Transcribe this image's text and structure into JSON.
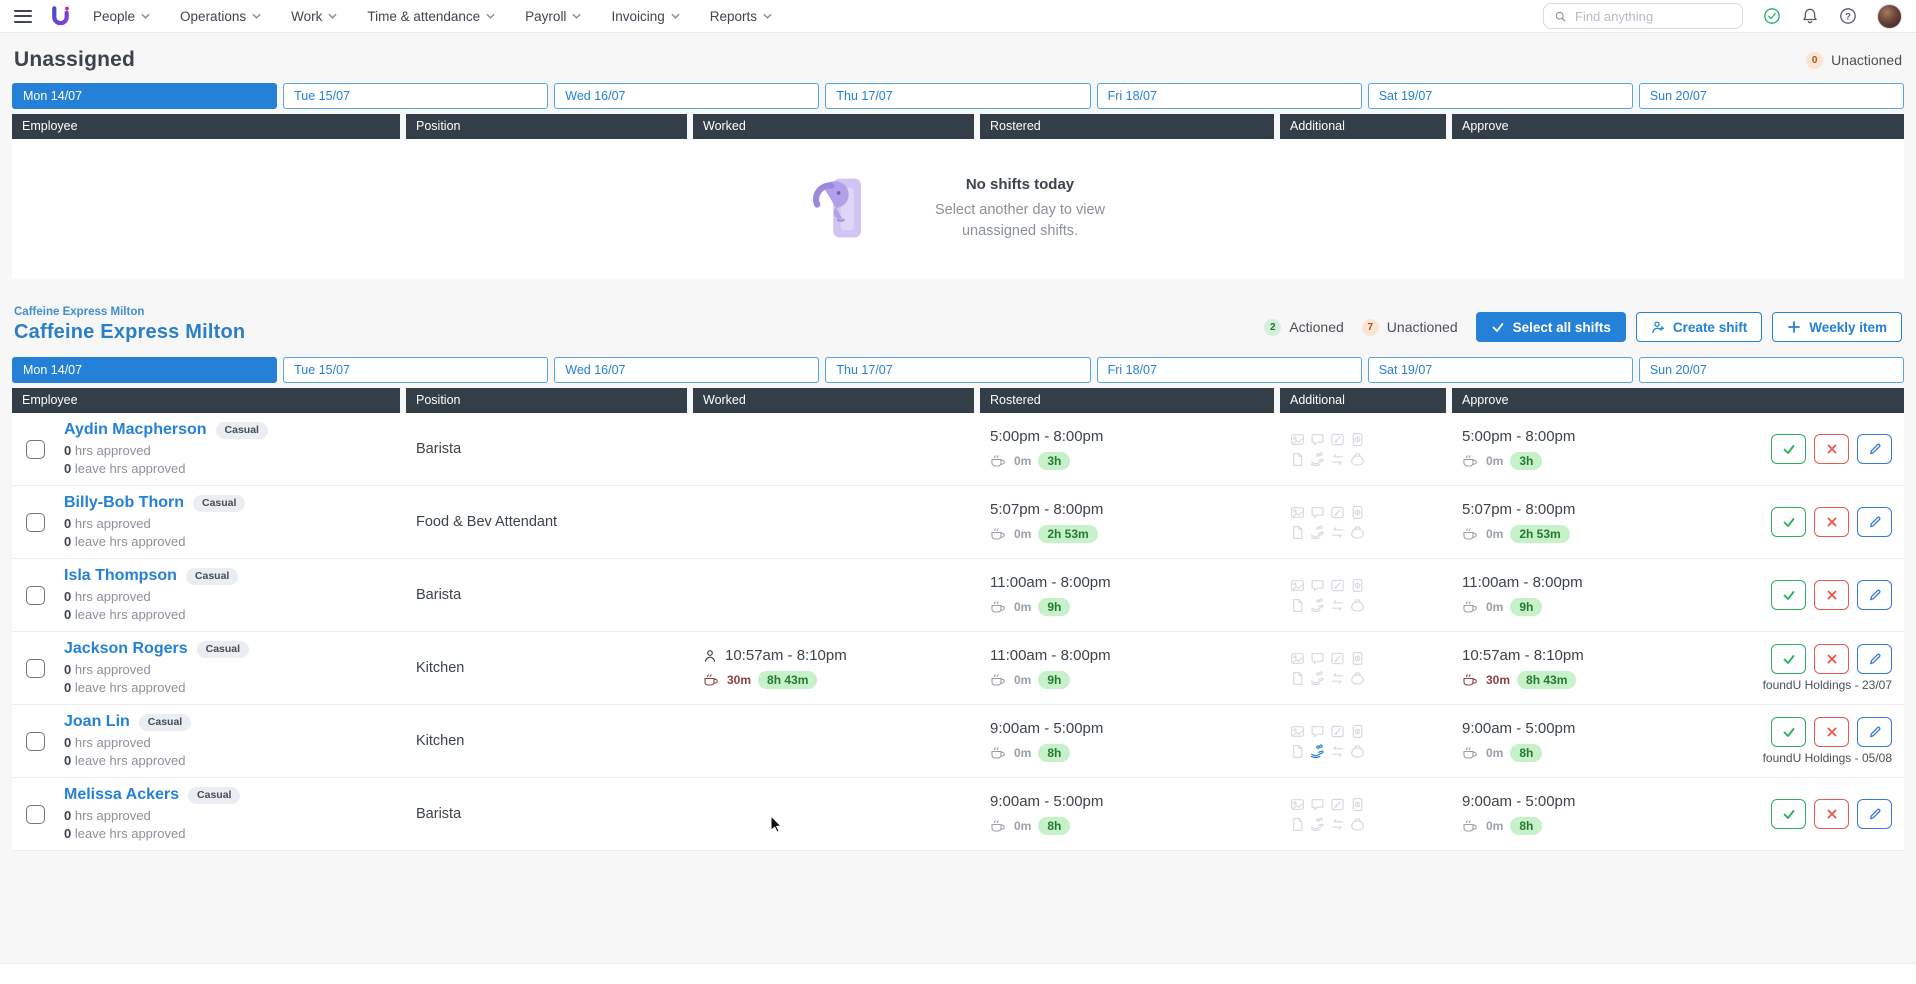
{
  "navbar": {
    "menu_items": [
      "People",
      "Operations",
      "Work",
      "Time & attendance",
      "Payroll",
      "Invoicing",
      "Reports"
    ],
    "search_placeholder": "Find anything",
    "right_icons": [
      "check-circle",
      "bell",
      "help-circle",
      "avatar"
    ]
  },
  "days": [
    "Mon 14/07",
    "Tue 15/07",
    "Wed 16/07",
    "Thu 17/07",
    "Fri 18/07",
    "Sat 19/07",
    "Sun 20/07"
  ],
  "active_day": "Mon 14/07",
  "table_headers": [
    "Employee",
    "Position",
    "Worked",
    "Rostered",
    "Additional",
    "Approve"
  ],
  "unassigned": {
    "title": "Unassigned",
    "unactioned_count": "0",
    "unactioned_label": "Unactioned",
    "empty_title": "No shifts today",
    "empty_line1": "Select another day to view",
    "empty_line2": "unassigned shifts."
  },
  "venue": {
    "breadcrumb": "Caffeine Express Milton",
    "title": "Caffeine Express Milton",
    "actioned_count": "2",
    "actioned_label": "Actioned",
    "unactioned_count": "7",
    "unactioned_label": "Unactioned",
    "select_all_label": "Select all shifts",
    "create_shift_label": "Create shift",
    "weekly_item_label": "Weekly item"
  },
  "additional_icons": [
    "photo",
    "comment",
    "note-edit",
    "receipt",
    "document",
    "hand-coins",
    "transfer",
    "money-bag"
  ],
  "colors": {
    "accent_blue": "#2481d7",
    "header_dark": "#333e48",
    "approve_green": "#2eae5e",
    "reject_red": "#e8584f",
    "duration_pill_bg": "#c6f1c9",
    "duration_pill_text": "#257a32",
    "actioned_badge_bg": "#d2f1da",
    "unactioned_badge_bg": "#fbe4d2"
  },
  "rows": [
    {
      "name": "Aydin Macpherson",
      "employment_type": "Casual",
      "hrs_approved": "0",
      "hrs_approved_label": "hrs approved",
      "leave_approved": "0",
      "leave_approved_label": "leave hrs approved",
      "position": "Barista",
      "worked": null,
      "rostered": {
        "time": "5:00pm - 8:00pm",
        "break": "0m",
        "duration": "3h"
      },
      "approve": {
        "time": "5:00pm - 8:00pm",
        "break": "0m",
        "duration": "3h"
      },
      "note": "",
      "additional_highlight": ""
    },
    {
      "name": "Billy-Bob Thorn",
      "employment_type": "Casual",
      "hrs_approved": "0",
      "hrs_approved_label": "hrs approved",
      "leave_approved": "0",
      "leave_approved_label": "leave hrs approved",
      "position": "Food & Bev Attendant",
      "worked": null,
      "rostered": {
        "time": "5:07pm - 8:00pm",
        "break": "0m",
        "duration": "2h 53m"
      },
      "approve": {
        "time": "5:07pm - 8:00pm",
        "break": "0m",
        "duration": "2h 53m"
      },
      "note": "",
      "additional_highlight": ""
    },
    {
      "name": "Isla Thompson",
      "employment_type": "Casual",
      "hrs_approved": "0",
      "hrs_approved_label": "hrs approved",
      "leave_approved": "0",
      "leave_approved_label": "leave hrs approved",
      "position": "Barista",
      "worked": null,
      "rostered": {
        "time": "11:00am - 8:00pm",
        "break": "0m",
        "duration": "9h"
      },
      "approve": {
        "time": "11:00am - 8:00pm",
        "break": "0m",
        "duration": "9h"
      },
      "note": "",
      "additional_highlight": ""
    },
    {
      "name": "Jackson Rogers",
      "employment_type": "Casual",
      "hrs_approved": "0",
      "hrs_approved_label": "hrs approved",
      "leave_approved": "0",
      "leave_approved_label": "leave hrs approved",
      "position": "Kitchen",
      "worked": {
        "time": "10:57am - 8:10pm",
        "break": "30m",
        "duration": "8h 43m"
      },
      "rostered": {
        "time": "11:00am - 8:00pm",
        "break": "0m",
        "duration": "9h"
      },
      "approve": {
        "time": "10:57am - 8:10pm",
        "break": "30m",
        "duration": "8h 43m"
      },
      "note": "foundU Holdings - 23/07",
      "additional_highlight": ""
    },
    {
      "name": "Joan Lin",
      "employment_type": "Casual",
      "hrs_approved": "0",
      "hrs_approved_label": "hrs approved",
      "leave_approved": "0",
      "leave_approved_label": "leave hrs approved",
      "position": "Kitchen",
      "worked": null,
      "rostered": {
        "time": "9:00am - 5:00pm",
        "break": "0m",
        "duration": "8h"
      },
      "approve": {
        "time": "9:00am - 5:00pm",
        "break": "0m",
        "duration": "8h"
      },
      "note": "foundU Holdings - 05/08",
      "additional_highlight": "hand-coins"
    },
    {
      "name": "Melissa Ackers",
      "employment_type": "Casual",
      "hrs_approved": "0",
      "hrs_approved_label": "hrs approved",
      "leave_approved": "0",
      "leave_approved_label": "leave hrs approved",
      "position": "Barista",
      "worked": null,
      "rostered": {
        "time": "9:00am - 5:00pm",
        "break": "0m",
        "duration": "8h"
      },
      "approve": {
        "time": "9:00am - 5:00pm",
        "break": "0m",
        "duration": "8h"
      },
      "note": "",
      "additional_highlight": ""
    }
  ]
}
